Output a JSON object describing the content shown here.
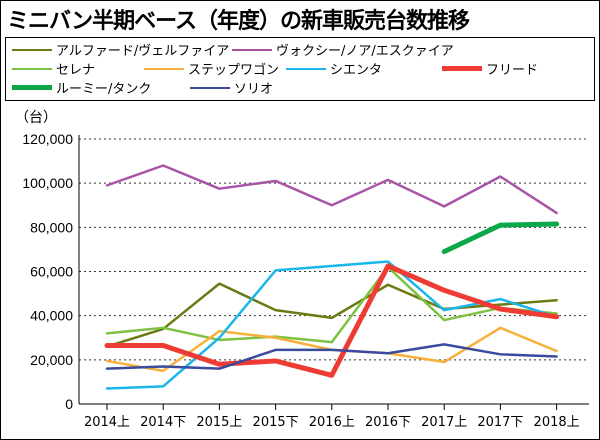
{
  "chart_data": {
    "type": "line",
    "title": "ミニバン半期ベース（年度）の新車販売台数推移",
    "ylabel": "（台）",
    "xlabel": "",
    "ylim": [
      0,
      120000
    ],
    "yticks": [
      "0",
      "20,000",
      "40,000",
      "60,000",
      "80,000",
      "100,000",
      "120,000"
    ],
    "grid": "horizontal-dotted",
    "legend_position": "top",
    "categories": [
      "2014上",
      "2014下",
      "2015上",
      "2015下",
      "2016上",
      "2016下",
      "2017上",
      "2017下",
      "2018上"
    ],
    "series": [
      {
        "name": "アルファード/ヴェルファイア",
        "color": "#6b7a12",
        "width": 2.5,
        "values": [
          26000,
          34000,
          54500,
          42500,
          39000,
          54000,
          43000,
          45000,
          47000
        ]
      },
      {
        "name": "ヴォクシー/ノア/エスクァイア",
        "color": "#a855a8",
        "width": 2.5,
        "values": [
          99000,
          108000,
          97500,
          101000,
          90000,
          101500,
          89500,
          103000,
          86500
        ]
      },
      {
        "name": "セレナ",
        "color": "#7dc242",
        "width": 2.5,
        "values": [
          32000,
          34500,
          29000,
          30500,
          28000,
          62000,
          38000,
          43500,
          41000
        ]
      },
      {
        "name": "ステップワゴン",
        "color": "#f7b03a",
        "width": 2.5,
        "values": [
          19500,
          15000,
          33000,
          30000,
          24500,
          23000,
          19000,
          34500,
          24000
        ]
      },
      {
        "name": "シエンタ",
        "color": "#1ab6ea",
        "width": 2.5,
        "values": [
          7000,
          8000,
          30000,
          60500,
          62500,
          64500,
          42500,
          47500,
          39500
        ]
      },
      {
        "name": "フリード",
        "color": "#ee3b33",
        "width": 5,
        "values": [
          26500,
          26500,
          18000,
          19500,
          13000,
          62500,
          51500,
          43000,
          39500
        ]
      },
      {
        "name": "ルーミー/タンク",
        "color": "#0ba84a",
        "width": 5,
        "values": [
          null,
          null,
          null,
          null,
          null,
          null,
          69000,
          81000,
          81500
        ]
      },
      {
        "name": "ソリオ",
        "color": "#3a4a9c",
        "width": 2.5,
        "values": [
          16000,
          17000,
          16000,
          24500,
          24500,
          23000,
          27000,
          22500,
          21500
        ]
      }
    ]
  }
}
